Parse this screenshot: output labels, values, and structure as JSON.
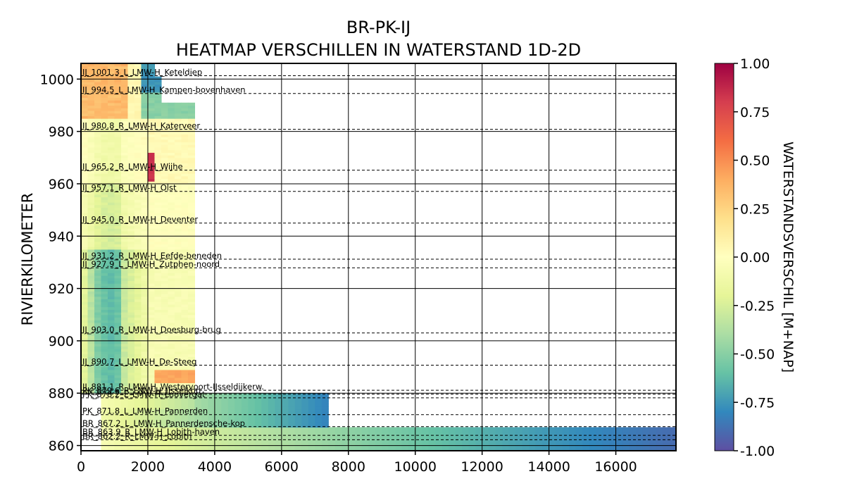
{
  "chart_data": {
    "type": "heatmap",
    "title": "BR-PK-IJ",
    "subtitle": "HEATMAP VERSCHILLEN IN WATERSTAND 1D-2D",
    "xlabel": "",
    "ylabel": "RIVIERKILOMETER",
    "xlim": [
      0,
      17800
    ],
    "ylim": [
      858,
      1006
    ],
    "x_ticks": [
      0,
      2000,
      4000,
      6000,
      8000,
      10000,
      12000,
      14000,
      16000
    ],
    "y_ticks": [
      860,
      880,
      900,
      920,
      940,
      960,
      980,
      1000
    ],
    "grid": true,
    "colorbar": {
      "label": "WATERSTANDSVERSCHIL [M+NAP]",
      "min": -1.0,
      "max": 1.0,
      "ticks": [
        "1.00",
        "0.75",
        "0.50",
        "0.25",
        "0.00",
        "-0.25",
        "-0.50",
        "-0.75",
        "-1.00"
      ],
      "colormap": "Spectral"
    },
    "gauges": [
      {
        "label": "IJ_1001.3_L_LMW-H_Keteldiep",
        "km": 1001.3
      },
      {
        "label": "IJ_994.5_L_LMW-H_Kampen-bovenhaven",
        "km": 994.5
      },
      {
        "label": "IJ_980.8_R_LMW-H_Katerveer",
        "km": 980.8
      },
      {
        "label": "IJ_965.2_R_LMW-H_Wijhe",
        "km": 965.2
      },
      {
        "label": "IJ_957.1_R_LMW-H_Olst",
        "km": 957.1
      },
      {
        "label": "IJ_945.0_R_LMW-H_Deventer",
        "km": 945.0
      },
      {
        "label": "IJ_931.2_R_LMW-H_Eefde-beneden",
        "km": 931.2
      },
      {
        "label": "IJ_927.9_L_LMW-H_Zutphen-noord",
        "km": 927.9
      },
      {
        "label": "IJ_903.0_R_LMW-H_Doesburg-brug",
        "km": 903.0
      },
      {
        "label": "IJ_890.7_L_LMW-H_De-Steeg",
        "km": 890.7
      },
      {
        "label": "IJ_881.1_R_LMW-H_Westervoort-IJsseldijkerw.",
        "km": 881.1
      },
      {
        "label": "PK_879.6_R_LMW-H_IJsselkop",
        "km": 879.6
      },
      {
        "label": "PK_878.2_L_LMW-H_Loovergat",
        "km": 878.2
      },
      {
        "label": "PK_871.8_L_LMW-H_Pannerden",
        "km": 871.8
      },
      {
        "label": "BR_867.2_L_LMW-H_Pannerdensche-kop",
        "km": 867.2
      },
      {
        "label": "BR_863.9_R_LMW-H_Lobith-haven",
        "km": 863.9
      },
      {
        "label": "BR_862.2_R_LMW-H_Lobith",
        "km": 862.2
      }
    ],
    "regions": [
      {
        "branch": "BR",
        "km_range": [
          858,
          867.2
        ],
        "x_range": [
          0,
          17800
        ],
        "trend": "0.0 at x=600 decreasing to -0.9 near x=17800"
      },
      {
        "branch": "PK",
        "km_range": [
          867.2,
          879.6
        ],
        "x_range": [
          0,
          7400
        ],
        "trend": "-0.1 at x=600 decreasing to -0.8 near x=7400"
      },
      {
        "branch": "IJ",
        "km_range": [
          879.6,
          1006
        ],
        "x_range": [
          0,
          3400
        ],
        "trend": "-0.5 to -0.6 at x=400-1200, -0.1 to 0.0 beyond; positive 0.3-0.4 near km 995-1006 and km 885-888"
      }
    ]
  }
}
